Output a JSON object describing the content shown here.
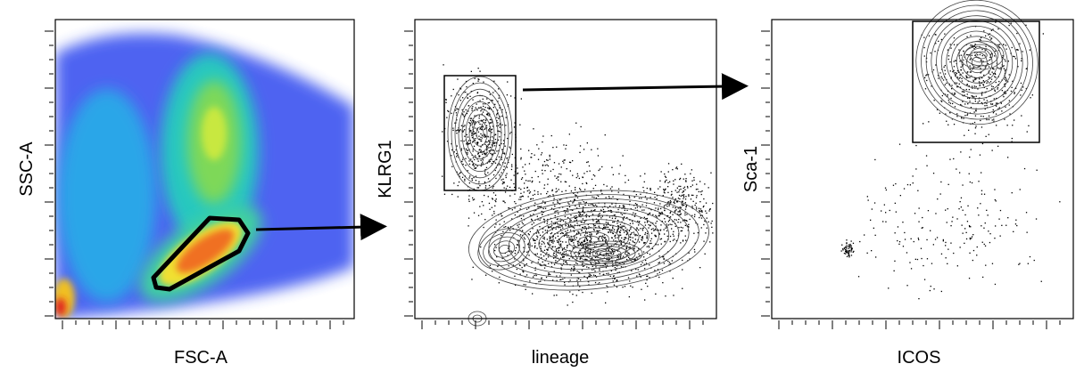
{
  "panels": [
    {
      "x_label": "FSC-A",
      "y_label": "SSC-A"
    },
    {
      "x_label": "lineage",
      "y_label": "KLRG1"
    },
    {
      "x_label": "ICOS",
      "y_label": "Sca-1"
    }
  ]
}
